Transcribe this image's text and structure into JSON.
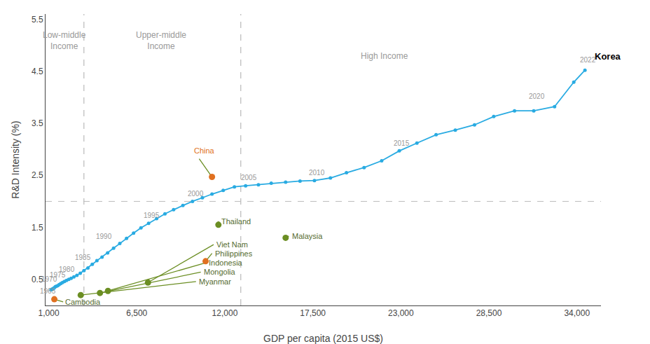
{
  "chart_data": {
    "type": "line",
    "xlabel": "GDP per capita (2015 US$)",
    "ylabel": "R&D Intensity (%)",
    "series": [
      {
        "name": "Korea",
        "color": "#29ABE2",
        "marker": "circle",
        "x": [
          1143,
          1180,
          1220,
          1260,
          1300,
          1350,
          1410,
          1480,
          1560,
          1650,
          1750,
          1860,
          1980,
          2110,
          2250,
          2400,
          2570,
          2760,
          2970,
          3200,
          3450,
          3720,
          4010,
          4330,
          4680,
          5050,
          5440,
          5860,
          6300,
          6760,
          7240,
          7740,
          8260,
          8800,
          9380,
          9980,
          10600,
          11200,
          11900,
          12600,
          13300,
          14100,
          14900,
          15800,
          16700,
          17600,
          18600,
          19600,
          20700,
          21800,
          22900,
          24000,
          25200,
          26400,
          27600,
          28800,
          30100,
          31300,
          32600,
          33800,
          34500
        ],
        "values": [
          0.3,
          0.31,
          0.31,
          0.32,
          0.33,
          0.34,
          0.36,
          0.37,
          0.38,
          0.4,
          0.42,
          0.44,
          0.46,
          0.48,
          0.5,
          0.52,
          0.55,
          0.58,
          0.62,
          0.67,
          0.72,
          0.79,
          0.86,
          0.93,
          1.01,
          1.1,
          1.19,
          1.29,
          1.39,
          1.49,
          1.58,
          1.67,
          1.76,
          1.84,
          1.92,
          2.0,
          2.07,
          2.14,
          2.21,
          2.28,
          2.3,
          2.32,
          2.35,
          2.37,
          2.39,
          2.4,
          2.45,
          2.55,
          2.65,
          2.78,
          2.97,
          3.12,
          3.28,
          3.37,
          3.47,
          3.63,
          3.74,
          3.74,
          3.82,
          4.29,
          4.52
        ],
        "label_x": 35000,
        "label_y": 4.78
      }
    ],
    "year_labels": [
      {
        "text": "1965",
        "x": 943,
        "y": 0.18
      },
      {
        "text": "1970",
        "x": 1050,
        "y": 0.41
      },
      {
        "text": "1975",
        "x": 1550,
        "y": 0.49
      },
      {
        "text": "1980",
        "x": 2150,
        "y": 0.59
      },
      {
        "text": "1985",
        "x": 3150,
        "y": 0.82
      },
      {
        "text": "1990",
        "x": 4450,
        "y": 1.22
      },
      {
        "text": "1995",
        "x": 7440,
        "y": 1.63
      },
      {
        "text": "2000",
        "x": 10180,
        "y": 2.05
      },
      {
        "text": "2005",
        "x": 13500,
        "y": 2.35
      },
      {
        "text": "2010",
        "x": 17750,
        "y": 2.45
      },
      {
        "text": "2015",
        "x": 23050,
        "y": 3.02
      },
      {
        "text": "2020",
        "x": 31500,
        "y": 3.92
      },
      {
        "text": "2022",
        "x": 34700,
        "y": 4.62
      }
    ],
    "vertical_lines": [
      3200,
      13000
    ],
    "horizontal_lines": [
      2.0
    ],
    "income_labels": [
      {
        "text": "Low-middle\nIncome",
        "x": 2000,
        "y": 5.32
      },
      {
        "text": "Upper-middle\nIncome",
        "x": 8000,
        "y": 5.32
      },
      {
        "text": "High Income",
        "x": 22000,
        "y": 4.92
      }
    ],
    "leader_color": "#6B8E23",
    "countries": [
      {
        "name": "China",
        "x": 11200,
        "y": 2.47,
        "color": "#E07020",
        "line_end_x": 10400,
        "line_end_y": 2.82,
        "label_x": 10000,
        "label_y": 2.97,
        "label_color": "#E07020"
      },
      {
        "name": "Thailand",
        "x": 11600,
        "y": 1.55,
        "color": "#6B8E23",
        "line_end_x": 11600,
        "line_end_y": 1.62,
        "label_x": 11700,
        "label_y": 1.62,
        "label_color": "#556B2F"
      },
      {
        "name": "Malaysia",
        "x": 15800,
        "y": 1.3,
        "color": "#6B8E23",
        "line_end_x": 16000,
        "line_end_y": 1.33,
        "label_x": 16100,
        "label_y": 1.33,
        "label_color": "#556B2F"
      },
      {
        "name": "Viet Nam",
        "x": 7200,
        "y": 0.44,
        "color": "#6B8E23",
        "line_end_x": 11300,
        "line_end_y": 1.17,
        "label_x": 11400,
        "label_y": 1.17,
        "label_color": "#556B2F"
      },
      {
        "name": "Philippines",
        "x": 10800,
        "y": 0.85,
        "color": "#E07020",
        "line_end_x": 11200,
        "line_end_y": 1.0,
        "label_x": 11300,
        "label_y": 1.0,
        "label_color": "#556B2F"
      },
      {
        "name": "Indonesia",
        "x": 4700,
        "y": 0.28,
        "color": "#6B8E23",
        "line_end_x": 10800,
        "line_end_y": 0.82,
        "label_x": 10900,
        "label_y": 0.82,
        "label_color": "#556B2F"
      },
      {
        "name": "Mongolia",
        "x": 4200,
        "y": 0.24,
        "color": "#6B8E23",
        "line_end_x": 10500,
        "line_end_y": 0.64,
        "label_x": 10600,
        "label_y": 0.64,
        "label_color": "#556B2F"
      },
      {
        "name": "Myanmar",
        "x": 3000,
        "y": 0.2,
        "color": "#6B8E23",
        "line_end_x": 10200,
        "line_end_y": 0.46,
        "label_x": 10300,
        "label_y": 0.46,
        "label_color": "#556B2F"
      },
      {
        "name": "Cambodia",
        "x": 1350,
        "y": 0.12,
        "color": "#E07020",
        "line_end_x": 1900,
        "line_end_y": 0.07,
        "label_x": 1950,
        "label_y": 0.07,
        "label_color": "#556B2F"
      }
    ],
    "xlim": [
      800,
      35500
    ],
    "ylim": [
      0.0,
      5.6
    ],
    "xticks": [
      {
        "value": 1000,
        "label": "1,000"
      },
      {
        "value": 6500,
        "label": "6,500"
      },
      {
        "value": 12000,
        "label": "12,000"
      },
      {
        "value": 17500,
        "label": "17,500"
      },
      {
        "value": 23000,
        "label": "23,000"
      },
      {
        "value": 28500,
        "label": "28,500"
      },
      {
        "value": 34000,
        "label": "34,000"
      }
    ],
    "yticks": [
      0.5,
      1.5,
      2.5,
      3.5,
      4.5,
      5.5
    ],
    "grid": false
  }
}
